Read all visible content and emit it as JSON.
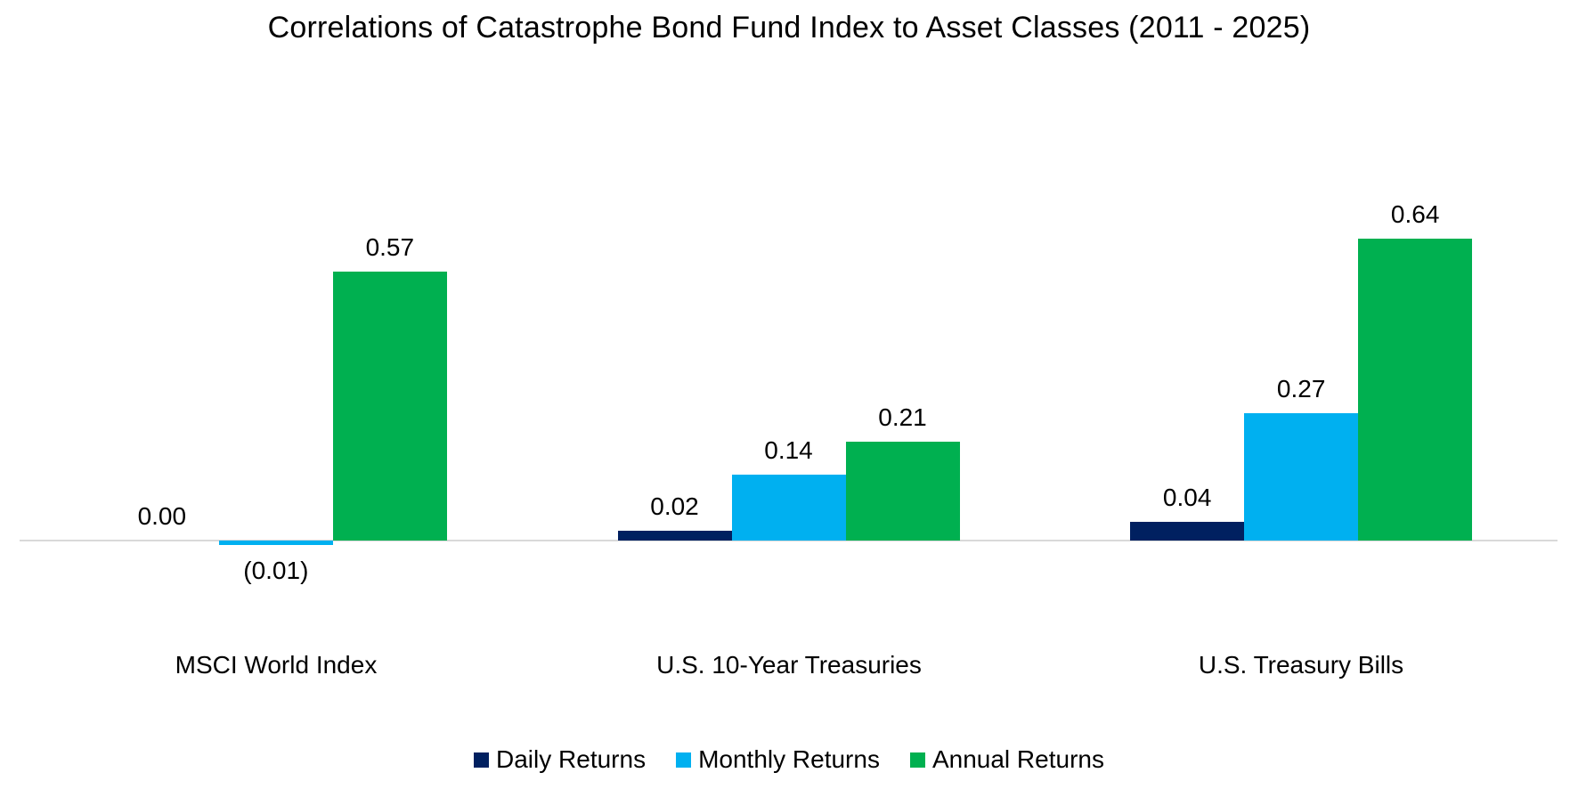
{
  "chart_data": {
    "type": "bar",
    "title": "Correlations of Catastrophe Bond Fund Index to Asset Classes (2011 - 2025)",
    "categories": [
      "MSCI World Index",
      "U.S. 10-Year Treasuries",
      "U.S. Treasury Bills"
    ],
    "series": [
      {
        "name": "Daily Returns",
        "color": "#002060",
        "values": [
          0.0,
          0.02,
          0.04
        ],
        "labels": [
          "0.00",
          "0.02",
          "0.04"
        ]
      },
      {
        "name": "Monthly Returns",
        "color": "#00B0F0",
        "values": [
          -0.01,
          0.14,
          0.27
        ],
        "labels": [
          "(0.01)",
          "0.14",
          "0.27"
        ]
      },
      {
        "name": "Annual Returns",
        "color": "#00B050",
        "values": [
          0.57,
          0.21,
          0.64
        ],
        "labels": [
          "0.57",
          "0.21",
          "0.64"
        ]
      }
    ],
    "ylim": [
      -0.05,
      0.75
    ],
    "grid": false,
    "y_axis_visible": false,
    "data_labels": true,
    "legend_position": "bottom",
    "axis_color": "#D9D9D9",
    "text_color": "#000000",
    "background_color": "#FFFFFF"
  }
}
